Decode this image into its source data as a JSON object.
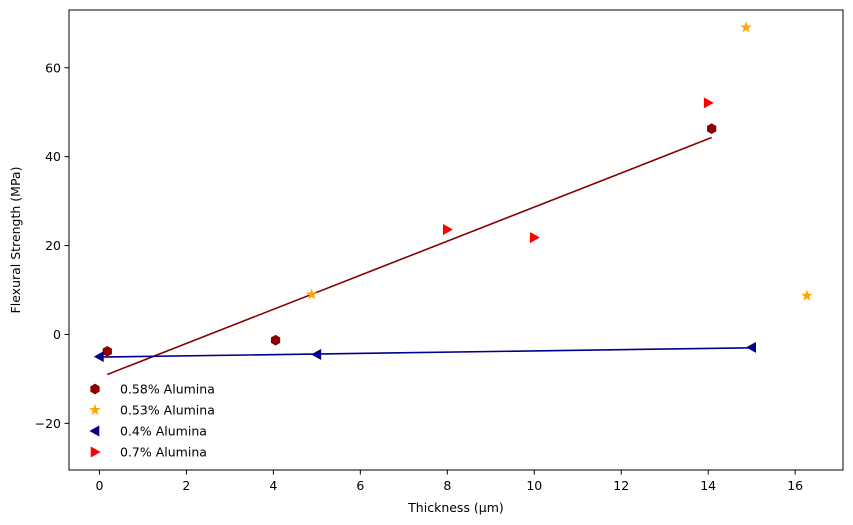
{
  "chart_data": {
    "type": "scatter",
    "title": "",
    "xlabel": "Thickness (μm)",
    "ylabel": "Flexural Strength (MPa)",
    "xlim": [
      -0.7,
      17.1
    ],
    "ylim": [
      -30.5,
      73.0
    ],
    "xticks": [
      0,
      2,
      4,
      6,
      8,
      10,
      12,
      14,
      16
    ],
    "yticks": [
      -20,
      0,
      20,
      40,
      60
    ],
    "ytick_labels": [
      "−20",
      "0",
      "20",
      "40",
      "60"
    ],
    "grid": false,
    "legend_position": "lower-left",
    "series": [
      {
        "name": "0.58% Alumina",
        "marker": "hexagon",
        "color": "#8b0000",
        "x": [
          0.18,
          4.05,
          14.08
        ],
        "y": [
          -3.8,
          -1.3,
          46.3
        ]
      },
      {
        "name": "0.53% Alumina",
        "marker": "star",
        "color": "#ffa500",
        "x": [
          4.88,
          14.87,
          16.27
        ],
        "y": [
          9.0,
          69.1,
          8.7
        ]
      },
      {
        "name": "0.4% Alumina",
        "marker": "triangle-left",
        "color": "#00008b",
        "x": [
          0.0,
          5.0,
          15.0
        ],
        "y": [
          -5.0,
          -4.5,
          -2.9
        ]
      },
      {
        "name": "0.7% Alumina",
        "marker": "triangle-right",
        "color": "#ff0000",
        "x": [
          8.0,
          10.0,
          14.0
        ],
        "y": [
          23.6,
          21.8,
          52.1
        ]
      }
    ],
    "fit_lines": [
      {
        "series": "0.58% Alumina",
        "color": "#8b0000",
        "x": [
          0.18,
          14.08
        ],
        "y": [
          -9.0,
          44.3
        ]
      },
      {
        "series": "0.4% Alumina",
        "color": "#00008b",
        "x": [
          0.0,
          15.0
        ],
        "y": [
          -5.1,
          -3.0
        ]
      }
    ]
  }
}
